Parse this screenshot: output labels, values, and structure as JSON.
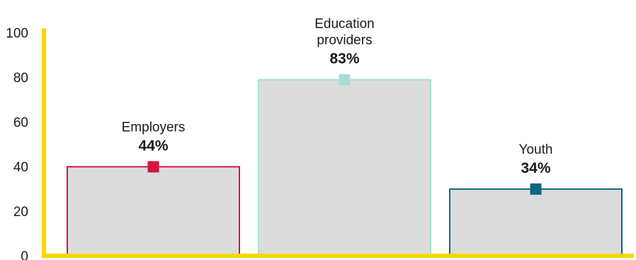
{
  "chart_data": {
    "type": "bar",
    "categories": [
      "Employers",
      "Education providers",
      "Youth"
    ],
    "values": [
      44,
      83,
      34
    ],
    "value_labels": [
      "44%",
      "83%",
      "34%"
    ],
    "category_label_lines": [
      [
        "Employers"
      ],
      [
        "Education",
        "providers"
      ],
      [
        "Youth"
      ]
    ],
    "bar_fill": "#dcdcdd",
    "bar_colors": [
      "#d0163e",
      "#a7ddd5",
      "#0f6680"
    ],
    "axis_color": "#f6d800",
    "ylim": [
      0,
      100
    ],
    "yticks": [
      "0",
      "20",
      "40",
      "60",
      "80",
      "100"
    ],
    "grid": false,
    "title": "",
    "xlabel": "",
    "ylabel": ""
  }
}
